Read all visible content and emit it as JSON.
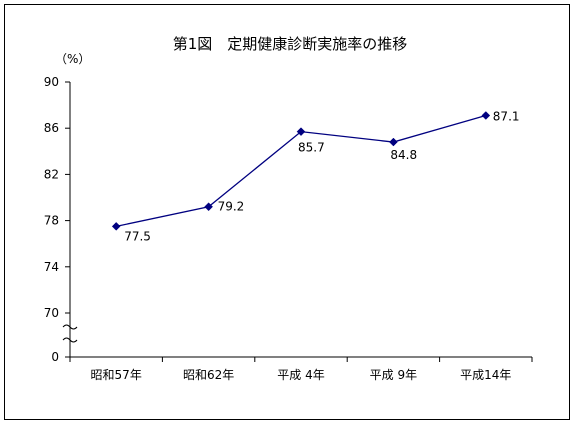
{
  "chart_data": {
    "type": "line",
    "title": "第1図　定期健康診断実施率の推移",
    "unit_label": "（%）",
    "categories": [
      "昭和57年",
      "昭和62年",
      "平成 4年",
      "平成 9年",
      "平成14年"
    ],
    "series": [
      {
        "values": [
          77.5,
          79.2,
          85.7,
          84.8,
          87.1
        ],
        "color": "#000080"
      }
    ],
    "data_labels": [
      "77.5",
      "79.2",
      "85.7",
      "84.8",
      "87.1"
    ],
    "yticks": [
      0,
      70,
      74,
      78,
      82,
      86,
      90
    ],
    "ylim": [
      66,
      90
    ],
    "axis_break": true,
    "grid": false,
    "legend": "none"
  }
}
